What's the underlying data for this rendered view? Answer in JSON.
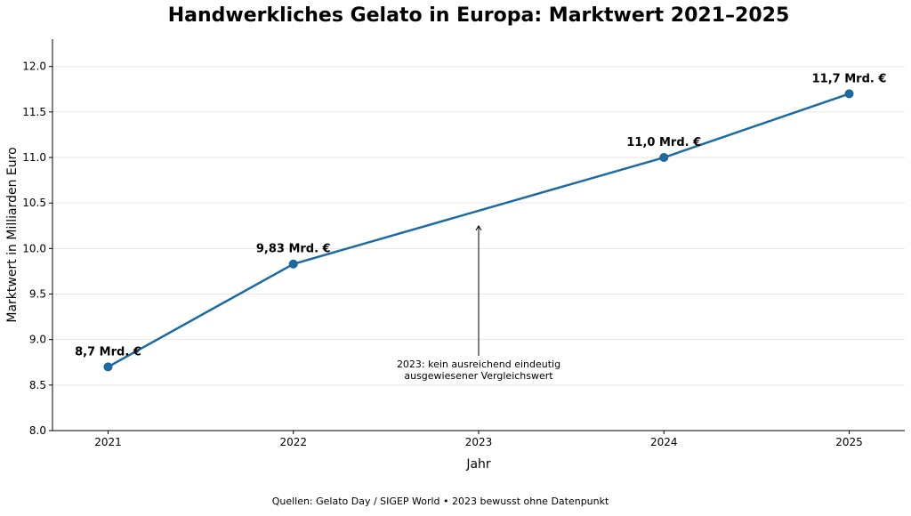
{
  "chart_data": {
    "type": "line",
    "title": "Handwerkliches Gelato in Europa: Marktwert 2021–2025",
    "xlabel": "Jahr",
    "ylabel": "Marktwert in Milliarden Euro",
    "x_ticks": [
      "2021",
      "2022",
      "2023",
      "2024",
      "2025"
    ],
    "y_ticks": [
      "8.0",
      "8.5",
      "9.0",
      "9.5",
      "10.0",
      "10.5",
      "11.0",
      "11.5",
      "12.0"
    ],
    "xlim": [
      2020.7,
      2025.3
    ],
    "ylim": [
      8.0,
      12.3
    ],
    "grid": "horizontal",
    "series": [
      {
        "color": "#1a6aa5",
        "points": [
          {
            "x": 2021,
            "y": 8.7,
            "label": "8,7 Mrd. €"
          },
          {
            "x": 2022,
            "y": 9.83,
            "label": "9,83 Mrd. €"
          },
          {
            "x": 2024,
            "y": 11.0,
            "label": "11,0 Mrd. €"
          },
          {
            "x": 2025,
            "y": 11.7,
            "label": "11,7 Mrd. €"
          }
        ]
      }
    ],
    "annotation": {
      "x": 2023,
      "y": 10.22,
      "lines": [
        "2023: kein ausreichend eindeutig",
        "ausgewiesener Vergleichswert"
      ]
    },
    "source": "Quellen: Gelato Day / SIGEP World • 2023 bewusst ohne Datenpunkt"
  }
}
